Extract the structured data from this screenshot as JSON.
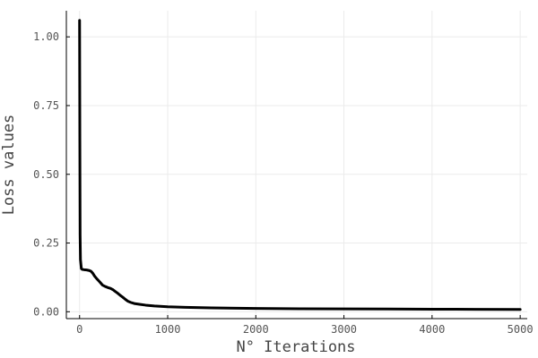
{
  "chart_data": {
    "type": "line",
    "xlabel": "N° Iterations",
    "ylabel": "Loss values",
    "xlim": [
      -150,
      5080
    ],
    "ylim": [
      -0.025,
      1.095
    ],
    "xticks": [
      0,
      1000,
      2000,
      3000,
      4000,
      5000
    ],
    "yticks": [
      0.0,
      0.25,
      0.5,
      0.75,
      1.0
    ],
    "xtick_labels": [
      "0",
      "1000",
      "2000",
      "3000",
      "4000",
      "5000"
    ],
    "ytick_labels": [
      "0.00",
      "0.25",
      "0.50",
      "0.75",
      "1.00"
    ],
    "grid": true,
    "legend": "none",
    "line_color": "#000000",
    "series": [
      {
        "x": [
          0,
          3,
          6,
          10,
          20,
          30,
          50,
          80,
          110,
          130,
          150,
          170,
          190,
          210,
          230,
          260,
          290,
          320,
          350,
          380,
          400,
          430,
          460,
          490,
          520,
          550,
          580,
          620,
          680,
          750,
          850,
          1000,
          1200,
          1500,
          2000,
          2500,
          3000,
          3500,
          4000,
          4500,
          5000
        ],
        "y": [
          1.06,
          0.62,
          0.28,
          0.19,
          0.157,
          0.154,
          0.153,
          0.152,
          0.15,
          0.147,
          0.14,
          0.13,
          0.122,
          0.115,
          0.108,
          0.097,
          0.092,
          0.088,
          0.085,
          0.08,
          0.075,
          0.068,
          0.06,
          0.053,
          0.045,
          0.038,
          0.034,
          0.03,
          0.027,
          0.024,
          0.021,
          0.018,
          0.016,
          0.014,
          0.012,
          0.011,
          0.0105,
          0.0098,
          0.0093,
          0.0089,
          0.0085
        ]
      }
    ]
  }
}
